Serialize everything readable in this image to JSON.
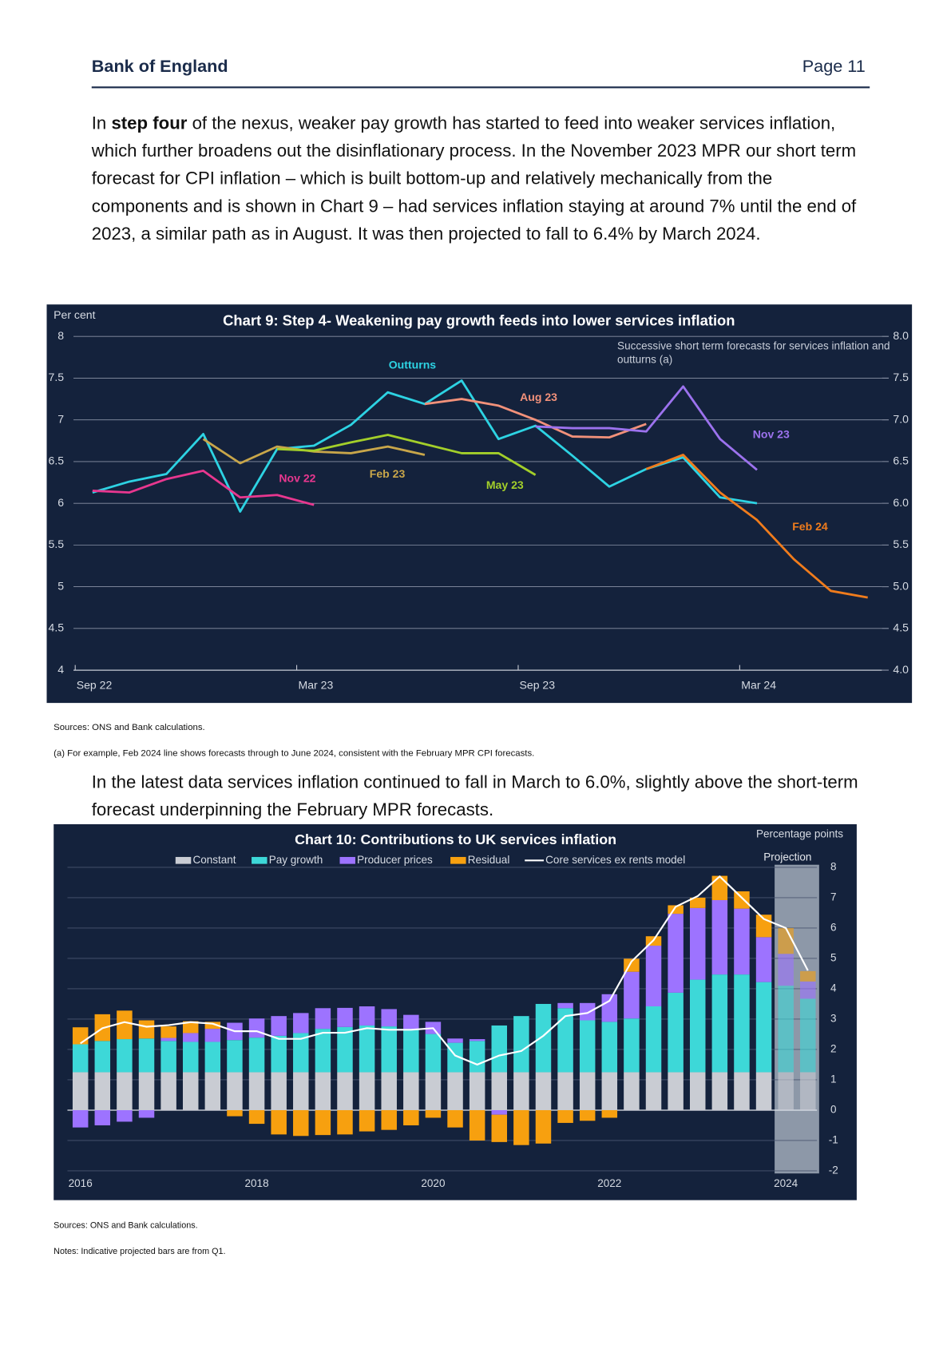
{
  "header": {
    "title": "Bank of England",
    "page": "Page 11"
  },
  "paragraphs": [
    {
      "runs": [
        {
          "text": "In "
        },
        {
          "text": "step four",
          "bold": true
        },
        {
          "text": " of the nexus, weaker pay growth has started to feed into weaker services inflation, which further broadens out the disinflationary process. In the November 2023 MPR our short term forecast for CPI inflation – which is built bottom-up and relatively mechanically from the components and is shown in Chart 9 – had services inflation staying at around 7% until the end of 2023, a similar path as in August. It was then projected to fall to 6.4% by March 2024."
        }
      ]
    },
    {
      "runs": [
        {
          "text": "In the latest data services inflation continued to fall in March to 6.0%, slightly above the short-term forecast underpinning the February MPR forecasts."
        }
      ]
    }
  ],
  "chart_data": [
    {
      "type": "line",
      "title": "Chart  9: Step 4- Weakening pay growth feeds into lower services inflation",
      "y_label": "Per cent",
      "annotation": "Successive short term forecasts for services inflation and outturns (a)",
      "categories": [
        "Sep 22",
        null,
        null,
        null,
        null,
        null,
        "Mar 23",
        null,
        null,
        null,
        null,
        null,
        "Sep 23",
        null,
        null,
        null,
        null,
        null,
        "Mar 24",
        null,
        null,
        null
      ],
      "series": [
        {
          "name": "Outturns",
          "color": "#2dd3e3",
          "values": [
            6.13,
            6.26,
            6.35,
            6.83,
            5.9,
            6.65,
            6.69,
            6.94,
            7.33,
            7.19,
            7.47,
            6.77,
            6.93,
            6.57,
            6.2,
            6.41,
            6.55,
            6.07,
            6.0,
            null,
            null,
            null
          ]
        },
        {
          "name": "Nov 22",
          "color": "#e8378f",
          "values": [
            6.15,
            6.13,
            6.29,
            6.39,
            6.07,
            6.1,
            5.98,
            null,
            null,
            null,
            null,
            null,
            null,
            null,
            null,
            null,
            null,
            null,
            null,
            null,
            null,
            null
          ]
        },
        {
          "name": "Feb 23",
          "color": "#c8a64a",
          "values": [
            null,
            null,
            null,
            6.77,
            6.48,
            6.68,
            6.62,
            6.6,
            6.68,
            6.58,
            null,
            null,
            null,
            null,
            null,
            null,
            null,
            null,
            null,
            null,
            null,
            null
          ]
        },
        {
          "name": "May 23",
          "color": "#a3cf2a",
          "values": [
            null,
            null,
            null,
            null,
            null,
            6.65,
            6.63,
            6.73,
            6.82,
            6.71,
            6.6,
            6.6,
            6.34,
            null,
            null,
            null,
            null,
            null,
            null,
            null,
            null,
            null
          ]
        },
        {
          "name": "Aug 23",
          "color": "#f2917a",
          "values": [
            null,
            null,
            null,
            null,
            null,
            null,
            null,
            null,
            null,
            7.19,
            7.25,
            7.17,
            7.0,
            6.8,
            6.79,
            6.95,
            null,
            null,
            null,
            null,
            null,
            null
          ]
        },
        {
          "name": "Nov 23",
          "color": "#9c72ee",
          "values": [
            null,
            null,
            null,
            null,
            null,
            null,
            null,
            null,
            null,
            null,
            null,
            null,
            6.92,
            6.9,
            6.9,
            6.86,
            7.4,
            6.77,
            6.4,
            null,
            null,
            null
          ]
        },
        {
          "name": "Feb 24",
          "color": "#f07c1c",
          "values": [
            null,
            null,
            null,
            null,
            null,
            null,
            null,
            null,
            null,
            null,
            null,
            null,
            null,
            null,
            null,
            6.41,
            6.58,
            6.13,
            5.8,
            5.33,
            4.95,
            4.87
          ]
        }
      ],
      "ylim": [
        4,
        8
      ],
      "yticks": [
        4,
        4.5,
        5,
        5.5,
        6,
        6.5,
        7,
        7.5,
        8
      ],
      "y2lim": [
        4,
        8
      ],
      "y2ticks": [
        {
          "value": 4,
          "label": "4.0"
        },
        4.5,
        {
          "value": 5,
          "label": "5.0"
        },
        5.5,
        {
          "value": 6,
          "label": "6.0"
        },
        6.5,
        {
          "value": 7,
          "label": "7.0"
        },
        7.5,
        {
          "value": 8,
          "label": "8.0"
        }
      ],
      "grid": true,
      "sources": "Sources: ONS and Bank calculations.",
      "footnote": "(a) For example, Feb 2024 line shows forecasts through to June 2024, consistent with the February MPR CPI forecasts."
    },
    {
      "type": "bar",
      "stacked": true,
      "title": "Chart 10: Contributions to UK services inflation",
      "y_label": "Percentage points",
      "projection_label": "Projection",
      "categories": [
        "2016",
        null,
        null,
        null,
        null,
        null,
        null,
        null,
        "2018",
        null,
        null,
        null,
        null,
        null,
        null,
        null,
        "2020",
        null,
        null,
        null,
        null,
        null,
        null,
        null,
        "2022",
        null,
        null,
        null,
        null,
        null,
        null,
        null,
        "2024",
        null
      ],
      "series": [
        {
          "name": "Constant",
          "color": "#c9ccd3",
          "values": [
            1.25,
            1.25,
            1.25,
            1.25,
            1.25,
            1.25,
            1.25,
            1.25,
            1.25,
            1.25,
            1.25,
            1.25,
            1.25,
            1.25,
            1.25,
            1.25,
            1.25,
            1.25,
            1.25,
            1.25,
            1.25,
            1.25,
            1.25,
            1.25,
            1.25,
            1.25,
            1.25,
            1.25,
            1.25,
            1.25,
            1.25,
            1.25,
            1.25,
            1.25
          ]
        },
        {
          "name": "Pay growth",
          "color": "#3dd8d8",
          "values": [
            0.92,
            1.03,
            1.09,
            1.11,
            1.03,
            1.0,
            1.0,
            1.06,
            1.14,
            1.2,
            1.29,
            1.43,
            1.49,
            1.54,
            1.51,
            1.43,
            1.26,
            0.97,
            1.03,
            1.54,
            1.85,
            2.25,
            2.11,
            1.71,
            1.66,
            1.77,
            2.17,
            2.62,
            3.05,
            3.22,
            3.22,
            2.97,
            2.85,
            2.42
          ]
        },
        {
          "name": "Producer prices",
          "color": "#9d73ff",
          "values": [
            -0.57,
            -0.5,
            -0.38,
            -0.25,
            0.1,
            0.29,
            0.43,
            0.57,
            0.63,
            0.65,
            0.66,
            0.68,
            0.63,
            0.63,
            0.57,
            0.46,
            0.4,
            0.14,
            0.06,
            -0.15,
            0,
            0,
            0.17,
            0.57,
            0.91,
            1.54,
            2.0,
            2.6,
            2.36,
            2.45,
            2.17,
            1.48,
            1.05,
            0.57
          ]
        },
        {
          "name": "Residual",
          "color": "#f7a00f",
          "values": [
            0.56,
            0.88,
            0.94,
            0.6,
            0.38,
            0.39,
            0.23,
            -0.2,
            -0.45,
            -0.8,
            -0.85,
            -0.82,
            -0.8,
            -0.7,
            -0.65,
            -0.5,
            -0.25,
            -0.57,
            -1.0,
            -0.9,
            -1.15,
            -1.1,
            -0.42,
            -0.35,
            -0.25,
            0.43,
            0.31,
            0.28,
            0.34,
            0.8,
            0.57,
            0.74,
            0.85,
            0.34
          ]
        },
        {
          "name": "Core services ex rents model",
          "type": "line",
          "color": "#ffffff",
          "values": [
            2.2,
            2.7,
            2.9,
            2.75,
            2.8,
            2.9,
            2.85,
            2.6,
            2.6,
            2.35,
            2.35,
            2.55,
            2.55,
            2.7,
            2.65,
            2.65,
            2.7,
            1.8,
            1.5,
            1.8,
            1.95,
            2.45,
            3.1,
            3.2,
            3.6,
            4.9,
            5.6,
            6.7,
            7.05,
            7.7,
            7.0,
            6.3,
            6.0,
            4.6
          ]
        }
      ],
      "ylim": [
        -2,
        8
      ],
      "yticks": [
        -2,
        -1,
        0,
        1,
        2,
        3,
        4,
        5,
        6,
        7,
        8
      ],
      "grid": true,
      "sources": "Sources: ONS and Bank calculations.",
      "notes": "Notes: Indicative projected bars are from Q1."
    }
  ]
}
